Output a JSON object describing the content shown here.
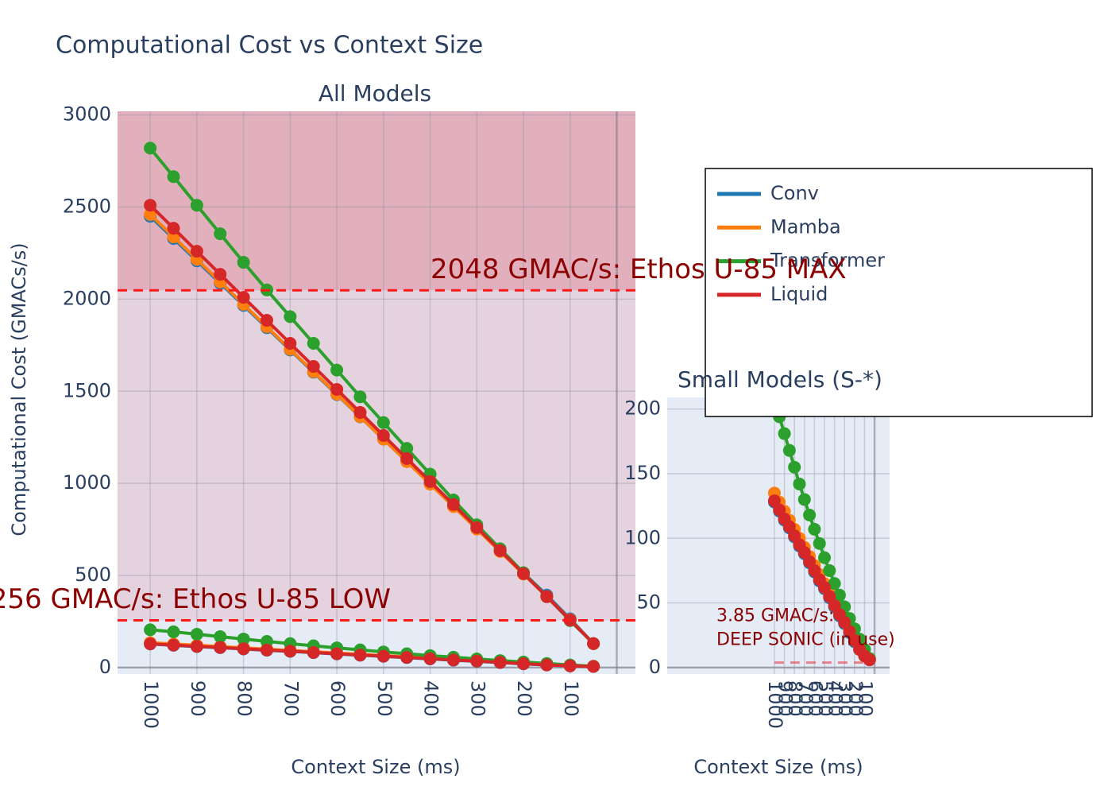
{
  "title": "Computational Cost vs Context Size",
  "chart_data": [
    {
      "type": "line",
      "title": "All Models",
      "x_label": "Context Size (ms)",
      "y_label": "Computational Cost (GMACs/s)",
      "x": [
        1000,
        950,
        900,
        850,
        800,
        750,
        700,
        650,
        600,
        550,
        500,
        450,
        400,
        350,
        300,
        250,
        200,
        150,
        100,
        50
      ],
      "xlim": [
        1070,
        -40
      ],
      "xticks": [
        1000,
        900,
        800,
        700,
        600,
        500,
        400,
        300,
        200,
        100
      ],
      "ylim": [
        -35,
        3020
      ],
      "yticks": [
        0,
        500,
        1000,
        1500,
        2000,
        2500,
        3000
      ],
      "grid": true,
      "legend": true,
      "shade": true,
      "hlines": [
        {
          "value": 2048,
          "label": "2048 GMAC/s: Ethos U-85 MAX"
        },
        {
          "value": 256,
          "label": "256 GMAC/s: Ethos U-85 LOW"
        }
      ],
      "series": [
        {
          "name": "Conv",
          "color": "#1f77b4",
          "values": [
            2450,
            2329,
            2208,
            2087,
            1966,
            1845,
            1724,
            1603,
            1482,
            1361,
            1240,
            1119,
            998,
            877,
            756,
            635,
            514,
            393,
            265,
            130
          ]
        },
        {
          "name": "Mamba",
          "color": "#ff7f0e",
          "values": [
            2460,
            2338,
            2216,
            2094,
            1972,
            1850,
            1728,
            1606,
            1484,
            1362,
            1240,
            1118,
            996,
            874,
            752,
            630,
            508,
            386,
            260,
            130
          ]
        },
        {
          "name": "Transformer",
          "color": "#2ca02c",
          "values": [
            2820,
            2665,
            2510,
            2355,
            2200,
            2050,
            1905,
            1760,
            1615,
            1470,
            1330,
            1190,
            1050,
            910,
            775,
            645,
            515,
            385,
            255,
            130
          ]
        },
        {
          "name": "Liquid",
          "color": "#d62728",
          "values": [
            2510,
            2385,
            2260,
            2135,
            2010,
            1885,
            1760,
            1635,
            1510,
            1385,
            1260,
            1135,
            1010,
            885,
            760,
            635,
            510,
            385,
            258,
            130
          ]
        },
        {
          "name": "Conv",
          "color": "#1f77b4",
          "values": [
            128,
            121,
            114,
            108,
            101,
            94,
            88,
            81,
            74,
            67,
            61,
            54,
            47,
            40,
            34,
            27,
            20,
            14,
            9,
            6
          ]
        },
        {
          "name": "Mamba",
          "color": "#ff7f0e",
          "values": [
            135,
            128,
            121,
            114,
            107,
            100,
            93,
            86,
            79,
            72,
            65,
            58,
            51,
            44,
            37,
            30,
            23,
            16,
            10,
            7
          ]
        },
        {
          "name": "Transformer",
          "color": "#2ca02c",
          "values": [
            205,
            194,
            181,
            168,
            155,
            142,
            130,
            118,
            107,
            96,
            85,
            75,
            65,
            56,
            47,
            38,
            30,
            22,
            14,
            7
          ]
        },
        {
          "name": "Liquid",
          "color": "#d62728",
          "values": [
            129,
            122,
            115,
            109,
            102,
            95,
            89,
            82,
            75,
            68,
            62,
            55,
            48,
            41,
            35,
            28,
            21,
            14,
            9,
            6
          ]
        }
      ]
    },
    {
      "type": "line",
      "title": "Small Models (S-*)",
      "x_label": "Context Size (ms)",
      "x": [
        1000,
        950,
        900,
        850,
        800,
        750,
        700,
        650,
        600,
        550,
        500,
        450,
        400,
        350,
        300,
        250,
        200,
        150,
        100,
        50
      ],
      "xlim": [
        2070,
        -150
      ],
      "xticks": [
        1000,
        900,
        800,
        700,
        600,
        500,
        400,
        300,
        200,
        100
      ],
      "ylim": [
        -5,
        209
      ],
      "yticks": [
        0,
        50,
        100,
        150,
        200
      ],
      "grid": true,
      "legend": false,
      "shade": false,
      "hlines": [
        {
          "value": 3.85,
          "label": [
            "3.85 GMAC/s:",
            "DEEP SONIC (in use)"
          ]
        }
      ],
      "series": [
        {
          "name": "Conv",
          "color": "#1f77b4",
          "values": [
            128,
            121,
            114,
            108,
            101,
            94,
            88,
            81,
            74,
            67,
            61,
            54,
            47,
            40,
            34,
            27,
            20,
            14,
            9,
            6
          ]
        },
        {
          "name": "Mamba",
          "color": "#ff7f0e",
          "values": [
            135,
            128,
            121,
            114,
            107,
            100,
            93,
            86,
            79,
            72,
            65,
            58,
            51,
            44,
            37,
            30,
            23,
            16,
            10,
            7
          ]
        },
        {
          "name": "Transformer",
          "color": "#2ca02c",
          "values": [
            205,
            194,
            181,
            168,
            155,
            142,
            130,
            118,
            107,
            96,
            85,
            75,
            65,
            56,
            47,
            38,
            30,
            22,
            14,
            7
          ]
        },
        {
          "name": "Liquid",
          "color": "#d62728",
          "values": [
            129,
            122,
            115,
            109,
            102,
            95,
            89,
            82,
            75,
            68,
            62,
            55,
            48,
            41,
            35,
            28,
            21,
            14,
            9,
            6
          ]
        }
      ]
    }
  ]
}
